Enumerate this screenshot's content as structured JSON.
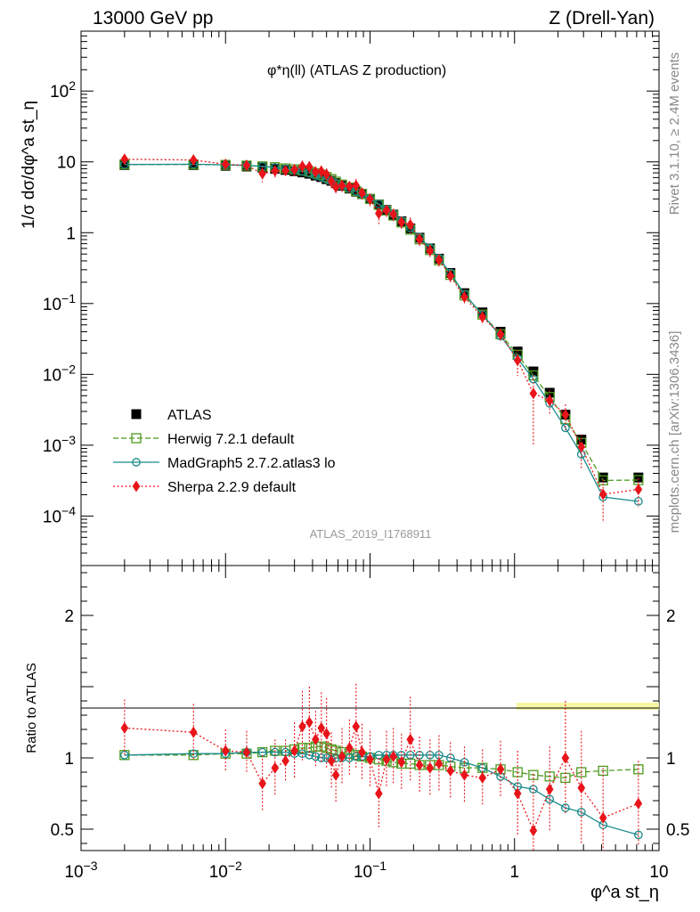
{
  "header": {
    "left": "13000 GeV pp",
    "right": "Z (Drell-Yan)"
  },
  "side_labels": {
    "rivet": "Rivet 3.1.10, ≥ 2.4M events",
    "mcplots": "mcplots.cern.ch [arXiv:1306.3436]"
  },
  "watermark": "ATLAS_2019_I1768911",
  "chart_data": {
    "type": "scatter",
    "title": "φ*η(ll) (ATLAS Z production)",
    "xlabel": "φ^a st_η",
    "ylabel": "1/σ dσ/dφ^a st_η",
    "ratio_ylabel": "Ratio to ATLAS",
    "xscale": "log",
    "yscale": "log",
    "xlim": [
      0.001,
      10
    ],
    "ylim": [
      2e-05,
      700
    ],
    "ratio_ylim": [
      0.35,
      2.35
    ],
    "x_tick_labels": [
      "10^-3",
      "10^-2",
      "10^-1",
      "1",
      "10"
    ],
    "y_tick_labels": [
      "10^-4",
      "10^-3",
      "10^-2",
      "10^-1",
      "1",
      "10",
      "10^2"
    ],
    "ratio_tick_labels": [
      "0.5",
      "1",
      "2"
    ],
    "legend_position": "lower-left",
    "x": [
      0.002,
      0.006,
      0.01,
      0.014,
      0.018,
      0.022,
      0.026,
      0.03,
      0.034,
      0.038,
      0.042,
      0.046,
      0.05,
      0.054,
      0.058,
      0.064,
      0.072,
      0.08,
      0.088,
      0.1,
      0.115,
      0.13,
      0.145,
      0.165,
      0.19,
      0.22,
      0.26,
      0.3,
      0.36,
      0.45,
      0.6,
      0.8,
      1.05,
      1.35,
      1.75,
      2.25,
      2.9,
      4.1,
      7.2
    ],
    "series": [
      {
        "name": "ATLAS",
        "style": "black filled squares",
        "color": "#000000",
        "values": [
          9.0,
          9.0,
          8.8,
          8.6,
          8.3,
          8.0,
          7.7,
          7.4,
          7.1,
          6.8,
          6.4,
          6.1,
          5.7,
          5.4,
          5.0,
          4.6,
          4.2,
          3.8,
          3.5,
          3.0,
          2.5,
          2.1,
          1.8,
          1.45,
          1.15,
          0.85,
          0.6,
          0.43,
          0.27,
          0.14,
          0.075,
          0.04,
          0.021,
          0.011,
          0.0055,
          0.0027,
          0.0012,
          0.00035,
          0.00035
        ],
        "ratio": [
          1.0,
          1.0,
          1.0,
          1.0,
          1.0,
          1.0,
          1.0,
          1.0,
          1.0,
          1.0,
          1.0,
          1.0,
          1.0,
          1.0,
          1.0,
          1.0,
          1.0,
          1.0,
          1.0,
          1.0,
          1.0,
          1.0,
          1.0,
          1.0,
          1.0,
          1.0,
          1.0,
          1.0,
          1.0,
          1.0,
          1.0,
          1.0,
          1.0,
          1.0,
          1.0,
          1.0,
          1.0,
          1.0,
          1.0
        ]
      },
      {
        "name": "Herwig 7.2.1 default",
        "style": "green dashed open squares",
        "color": "#4d9a1f",
        "values": [
          9.0,
          9.0,
          8.8,
          8.6,
          8.3,
          8.0,
          7.7,
          7.4,
          7.1,
          6.8,
          6.4,
          6.1,
          5.7,
          5.4,
          5.0,
          4.6,
          4.2,
          3.8,
          3.5,
          3.0,
          2.5,
          2.1,
          1.8,
          1.45,
          1.15,
          0.85,
          0.6,
          0.43,
          0.27,
          0.14,
          0.075,
          0.04,
          0.021,
          0.011,
          0.0055,
          0.0027,
          0.0012,
          0.00035,
          0.00035
        ],
        "ratio": [
          1.02,
          1.02,
          1.03,
          1.03,
          1.04,
          1.05,
          1.05,
          1.06,
          1.07,
          1.07,
          1.08,
          1.08,
          1.07,
          1.06,
          1.05,
          1.04,
          1.03,
          1.02,
          1.01,
          1.0,
          0.99,
          0.98,
          0.97,
          0.96,
          0.96,
          0.95,
          0.95,
          0.95,
          0.94,
          0.93,
          0.93,
          0.92,
          0.9,
          0.88,
          0.87,
          0.86,
          0.9,
          0.91,
          0.92
        ]
      },
      {
        "name": "MadGraph5 2.7.2.atlas3 lo",
        "style": "teal solid open circles",
        "color": "#1a8a8a",
        "values": [
          9.0,
          9.0,
          8.8,
          8.6,
          8.3,
          8.0,
          7.7,
          7.4,
          7.1,
          6.8,
          6.4,
          6.1,
          5.7,
          5.4,
          5.0,
          4.6,
          4.2,
          3.8,
          3.5,
          3.0,
          2.5,
          2.1,
          1.8,
          1.45,
          1.15,
          0.85,
          0.6,
          0.43,
          0.27,
          0.14,
          0.075,
          0.04,
          0.021,
          0.011,
          0.0055,
          0.0027,
          0.0012,
          0.00035,
          0.00035
        ],
        "ratio": [
          1.02,
          1.03,
          1.03,
          1.04,
          1.04,
          1.04,
          1.04,
          1.03,
          1.03,
          1.02,
          1.01,
          1.0,
          1.0,
          0.99,
          1.0,
          1.0,
          1.0,
          1.01,
          1.01,
          1.01,
          1.02,
          1.02,
          1.02,
          1.02,
          1.02,
          1.02,
          1.02,
          1.02,
          1.0,
          0.97,
          0.93,
          0.87,
          0.8,
          0.78,
          0.71,
          0.65,
          0.62,
          0.53,
          0.46
        ]
      },
      {
        "name": "Sherpa 2.2.9 default",
        "style": "red dotted diamonds",
        "color": "#e8141a",
        "values": [
          9.0,
          9.0,
          8.8,
          8.6,
          8.3,
          8.0,
          7.7,
          7.4,
          7.1,
          6.8,
          6.4,
          6.1,
          5.7,
          5.4,
          5.0,
          4.6,
          4.2,
          3.8,
          3.5,
          3.0,
          2.5,
          2.1,
          1.8,
          1.45,
          1.15,
          0.85,
          0.6,
          0.43,
          0.27,
          0.14,
          0.075,
          0.04,
          0.021,
          0.011,
          0.0055,
          0.0027,
          0.0012,
          0.00035,
          0.00035
        ],
        "ratio": [
          1.21,
          1.18,
          1.05,
          1.04,
          0.82,
          0.93,
          0.98,
          1.05,
          1.22,
          1.25,
          1.13,
          1.21,
          1.17,
          0.98,
          0.88,
          1.01,
          1.07,
          1.22,
          1.04,
          0.99,
          0.75,
          0.99,
          1.01,
          0.97,
          1.13,
          0.95,
          0.93,
          0.96,
          0.91,
          0.88,
          0.86,
          0.92,
          0.75,
          0.49,
          0.78,
          1.0,
          0.79,
          0.58,
          0.68
        ],
        "ratio_err": [
          0.2,
          0.2,
          0.15,
          0.15,
          0.2,
          0.2,
          0.15,
          0.2,
          0.25,
          0.25,
          0.2,
          0.25,
          0.25,
          0.2,
          0.2,
          0.2,
          0.2,
          0.3,
          0.2,
          0.2,
          0.25,
          0.2,
          0.2,
          0.2,
          0.3,
          0.2,
          0.2,
          0.2,
          0.2,
          0.2,
          0.2,
          0.2,
          0.3,
          0.4,
          0.3,
          0.4,
          0.4,
          0.35,
          0.3
        ]
      }
    ]
  }
}
